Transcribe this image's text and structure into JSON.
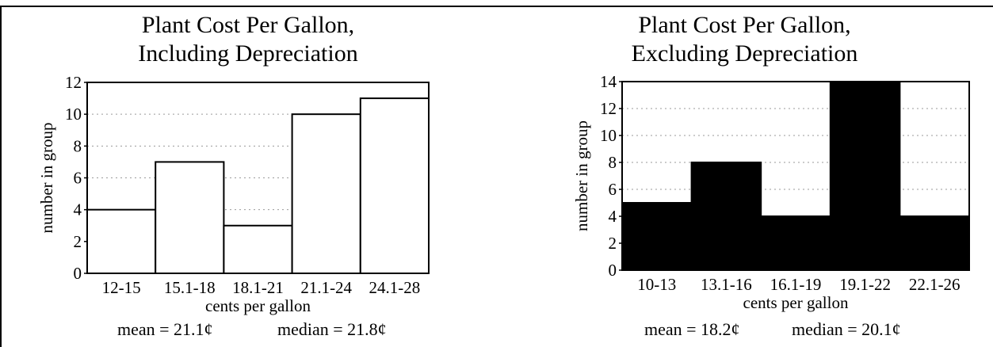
{
  "charts": [
    {
      "id": "left",
      "title_line1": "Plant Cost Per Gallon,",
      "title_line2": "Including Depreciation",
      "mean_text": "mean = 21.1¢",
      "median_text": "median = 21.8¢"
    },
    {
      "id": "right",
      "title_line1": "Plant Cost Per Gallon,",
      "title_line2": "Excluding Depreciation",
      "mean_text": "mean = 18.2¢",
      "median_text": "median = 20.1¢"
    }
  ],
  "chart_data": [
    {
      "type": "bar",
      "title": "Plant Cost Per Gallon, Including Depreciation",
      "categories": [
        "12-15",
        "15.1-18",
        "18.1-21",
        "21.1-24",
        "24.1-28"
      ],
      "values": [
        4,
        7,
        3,
        10,
        11
      ],
      "xlabel": "cents per gallon",
      "ylabel": "number in group",
      "ylim": [
        0,
        12
      ],
      "yticks": [
        0,
        2,
        4,
        6,
        8,
        10,
        12
      ],
      "bar_fill": "#ffffff",
      "grid": true
    },
    {
      "type": "bar",
      "title": "Plant Cost Per Gallon, Excluding Depreciation",
      "categories": [
        "10-13",
        "13.1-16",
        "16.1-19",
        "19.1-22",
        "22.1-26"
      ],
      "values": [
        5,
        8,
        4,
        14,
        4
      ],
      "xlabel": "cents per gallon",
      "ylabel": "number in group",
      "ylim": [
        0,
        14
      ],
      "yticks": [
        0,
        2,
        4,
        6,
        8,
        10,
        12,
        14
      ],
      "bar_fill": "#000000",
      "grid": true
    }
  ]
}
